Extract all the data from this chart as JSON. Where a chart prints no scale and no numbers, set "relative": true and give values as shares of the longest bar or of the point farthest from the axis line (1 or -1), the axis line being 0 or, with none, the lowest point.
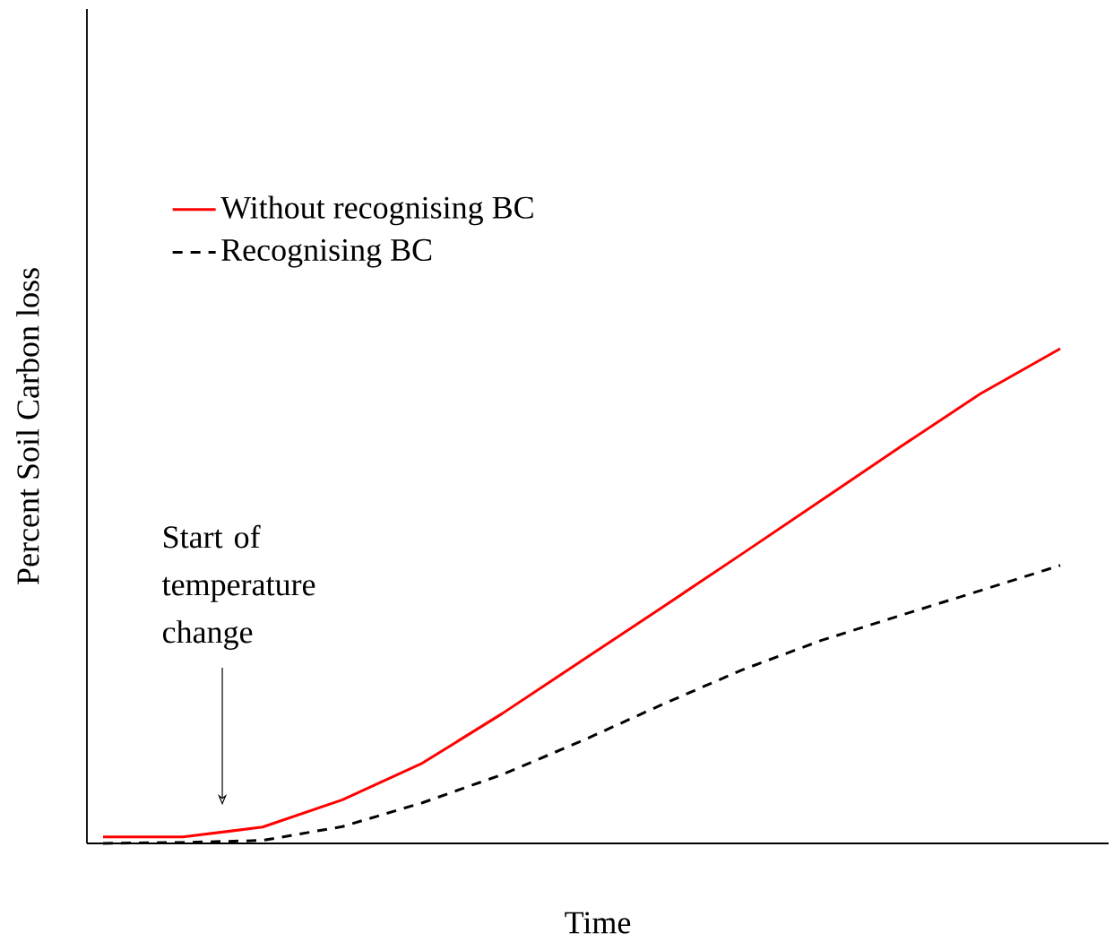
{
  "chart_data": {
    "type": "line",
    "relative": true,
    "xlabel": "Time",
    "ylabel": "Percent Soil Carbon loss",
    "legend": "top left",
    "annotations": [
      "Start of temperature change"
    ],
    "categories": [
      null,
      null,
      null,
      null,
      null,
      null,
      null,
      null,
      null,
      null,
      null,
      null,
      null
    ],
    "series": [
      {
        "name": "Without recognising BC",
        "color": "#ff0000",
        "line_style": "solid",
        "values": [
          0.013,
          0.013,
          0.033,
          0.088,
          0.162,
          0.262,
          0.369,
          0.476,
          0.584,
          0.693,
          0.802,
          0.909,
          1
        ]
      },
      {
        "name": "Recognising BC",
        "color": "#000000",
        "line_style": "dashed",
        "values": [
          0,
          0.002,
          0.006,
          0.034,
          0.082,
          0.139,
          0.207,
          0.28,
          0.35,
          0.41,
          0.461,
          0.511,
          0.562
        ]
      }
    ]
  }
}
